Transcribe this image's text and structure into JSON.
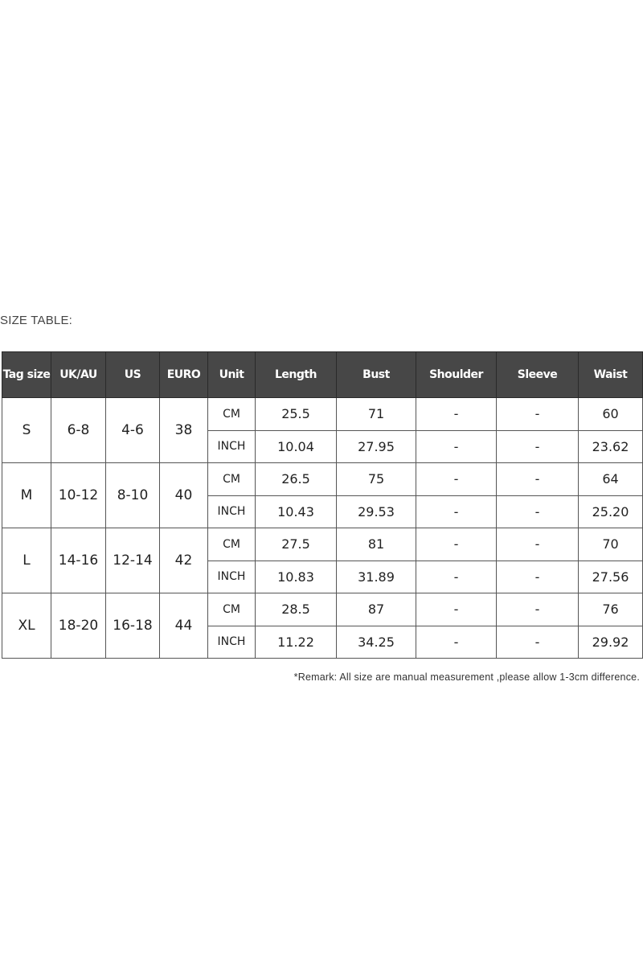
{
  "title": "SIZE TABLE:",
  "headers": [
    "Tag size",
    "UK/AU",
    "US",
    "EURO",
    "Unit",
    "Length",
    "Bust",
    "Shoulder",
    "Sleeve",
    "Waist"
  ],
  "rows": [
    {
      "tag": "S",
      "uk": "6-8",
      "us": "4-6",
      "euro": "38",
      "cm": {
        "unit": "CM",
        "length": "25.5",
        "bust": "71",
        "shoulder": "-",
        "sleeve": "-",
        "waist": "60"
      },
      "inch": {
        "unit": "INCH",
        "length": "10.04",
        "bust": "27.95",
        "shoulder": "-",
        "sleeve": "-",
        "waist": "23.62"
      }
    },
    {
      "tag": "M",
      "uk": "10-12",
      "us": "8-10",
      "euro": "40",
      "cm": {
        "unit": "CM",
        "length": "26.5",
        "bust": "75",
        "shoulder": "-",
        "sleeve": "-",
        "waist": "64"
      },
      "inch": {
        "unit": "INCH",
        "length": "10.43",
        "bust": "29.53",
        "shoulder": "-",
        "sleeve": "-",
        "waist": "25.20"
      }
    },
    {
      "tag": "L",
      "uk": "14-16",
      "us": "12-14",
      "euro": "42",
      "cm": {
        "unit": "CM",
        "length": "27.5",
        "bust": "81",
        "shoulder": "-",
        "sleeve": "-",
        "waist": "70"
      },
      "inch": {
        "unit": "INCH",
        "length": "10.83",
        "bust": "31.89",
        "shoulder": "-",
        "sleeve": "-",
        "waist": "27.56"
      }
    },
    {
      "tag": "XL",
      "uk": "18-20",
      "us": "16-18",
      "euro": "44",
      "cm": {
        "unit": "CM",
        "length": "28.5",
        "bust": "87",
        "shoulder": "-",
        "sleeve": "-",
        "waist": "76"
      },
      "inch": {
        "unit": "INCH",
        "length": "11.22",
        "bust": "34.25",
        "shoulder": "-",
        "sleeve": "-",
        "waist": "29.92"
      }
    }
  ],
  "remark": "*Remark: All size are manual measurement ,please allow 1-3cm difference."
}
